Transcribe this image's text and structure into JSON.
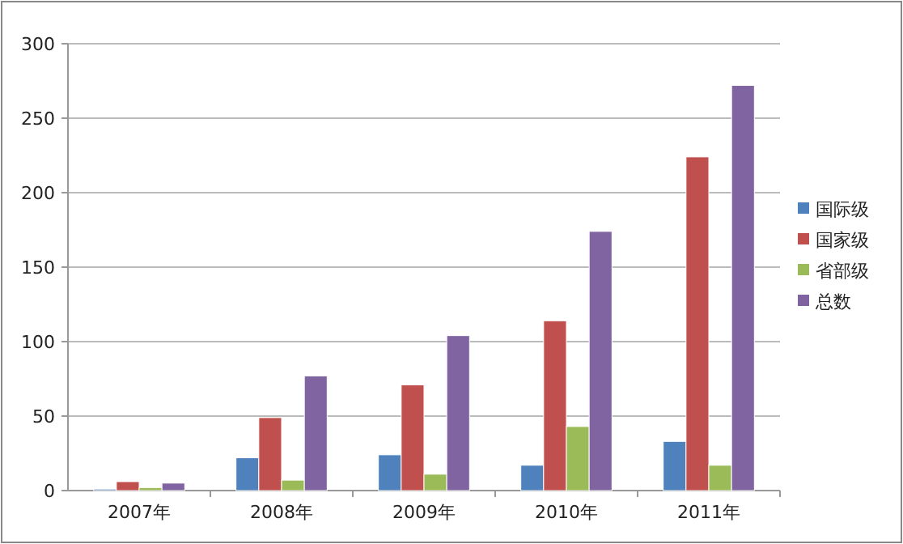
{
  "chart_data": {
    "type": "bar",
    "categories": [
      "2007年",
      "2008年",
      "2009年",
      "2010年",
      "2011年"
    ],
    "series": [
      {
        "name": "国际级",
        "color": "#4f81bd",
        "values": [
          1,
          22,
          24,
          17,
          33
        ]
      },
      {
        "name": "国家级",
        "color": "#c0504d",
        "values": [
          6,
          49,
          71,
          114,
          224
        ]
      },
      {
        "name": "省部级",
        "color": "#9bbb59",
        "values": [
          2,
          7,
          11,
          43,
          17
        ]
      },
      {
        "name": "总数",
        "color": "#8064a2",
        "values": [
          5,
          77,
          104,
          174,
          272
        ]
      }
    ],
    "ylim": [
      0,
      300
    ],
    "yticks": [
      0,
      50,
      100,
      150,
      200,
      250,
      300
    ],
    "grid": "y",
    "legend": "right"
  }
}
